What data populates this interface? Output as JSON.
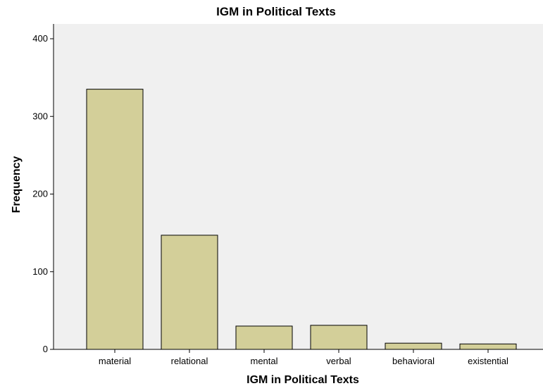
{
  "chart_data": {
    "type": "bar",
    "title": "IGM in Political Texts",
    "xlabel": "IGM in Political Texts",
    "ylabel": "Frequency",
    "categories": [
      "material",
      "relational",
      "mental",
      "verbal",
      "behavioral",
      "existential"
    ],
    "values": [
      335,
      147,
      30,
      31,
      8,
      7
    ],
    "ylim": [
      0,
      420
    ],
    "yticks": [
      0,
      100,
      200,
      300,
      400
    ],
    "bar_color": "#d3cf99",
    "bar_stroke": "#000000",
    "plot_background": "#f0f0f0",
    "grid": false
  }
}
